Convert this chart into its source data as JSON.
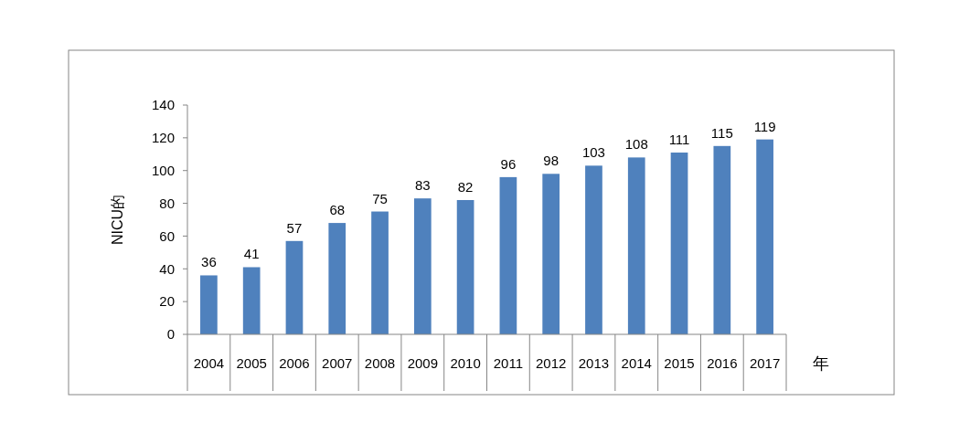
{
  "chart_data": {
    "type": "bar",
    "xlabel": "年",
    "ylabel": "NICU的",
    "categories": [
      "2004",
      "2005",
      "2006",
      "2007",
      "2008",
      "2009",
      "2010",
      "2011",
      "2012",
      "2013",
      "2014",
      "2015",
      "2016",
      "2017"
    ],
    "values": [
      36,
      41,
      57,
      68,
      75,
      83,
      82,
      96,
      98,
      103,
      108,
      111,
      115,
      119
    ],
    "color": "#4f81bd",
    "ylim": [
      0,
      140
    ],
    "yticks": [
      0,
      20,
      40,
      60,
      80,
      100,
      120,
      140
    ],
    "data_labels": true,
    "grid": false
  }
}
